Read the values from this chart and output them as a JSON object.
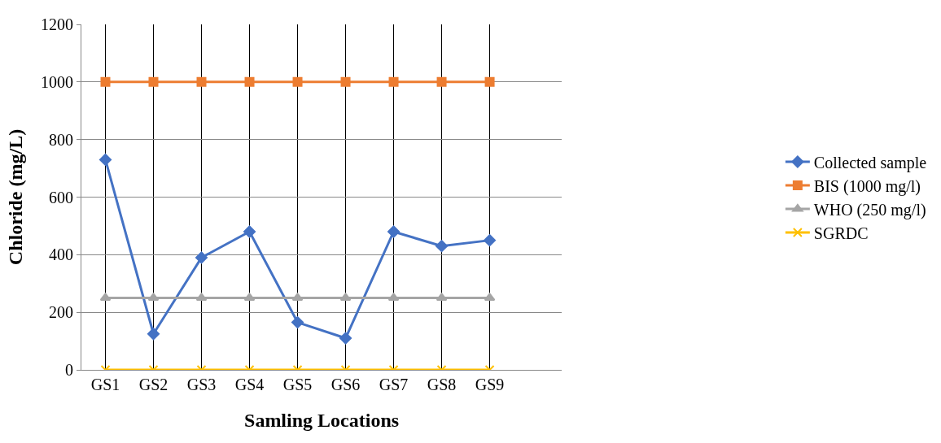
{
  "chart_data": {
    "type": "line",
    "xlabel": "Samling Locations",
    "ylabel": "Chloride (mg/L)",
    "categories": [
      "GS1",
      "GS2",
      "GS3",
      "GS4",
      "GS5",
      "GS6",
      "GS7",
      "GS8",
      "GS9"
    ],
    "series": [
      {
        "name": "Collected sample",
        "color": "#4472c4",
        "marker": "diamond",
        "values": [
          730,
          125,
          390,
          480,
          165,
          110,
          480,
          430,
          450
        ]
      },
      {
        "name": "BIS (1000 mg/l)",
        "color": "#ed7d31",
        "marker": "square",
        "values": [
          1000,
          1000,
          1000,
          1000,
          1000,
          1000,
          1000,
          1000,
          1000
        ]
      },
      {
        "name": "WHO (250 mg/l)",
        "color": "#a5a5a5",
        "marker": "triangle",
        "values": [
          250,
          250,
          250,
          250,
          250,
          250,
          250,
          250,
          250
        ]
      },
      {
        "name": "SGRDC",
        "color": "#ffc000",
        "marker": "cross",
        "values": [
          0,
          0,
          0,
          0,
          0,
          0,
          0,
          0,
          0
        ]
      }
    ],
    "ylim": [
      0,
      1200
    ],
    "yticks": [
      0,
      200,
      400,
      600,
      800,
      1000,
      1200
    ],
    "grid": true,
    "legend": "right"
  }
}
